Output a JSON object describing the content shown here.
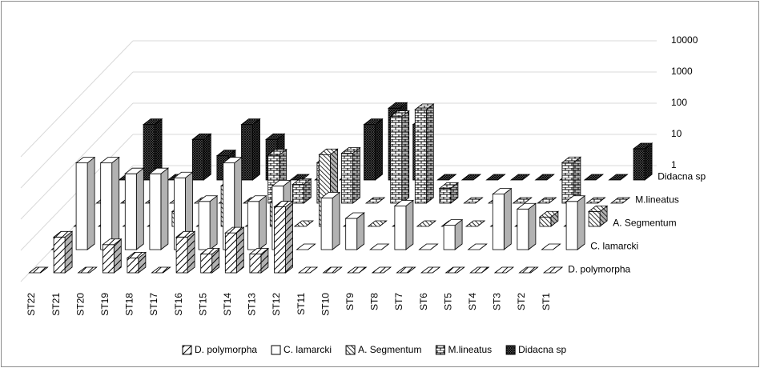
{
  "chart_data": {
    "type": "bar3d",
    "log_scale": true,
    "grid": true,
    "categories": [
      "ST22",
      "ST21",
      "ST20",
      "ST19",
      "ST18",
      "ST17",
      "ST16",
      "ST15",
      "ST14",
      "ST13",
      "ST12",
      "ST11",
      "ST10",
      "ST9",
      "ST8",
      "ST7",
      "ST6",
      "ST5",
      "ST4",
      "ST3",
      "ST2",
      "ST1"
    ],
    "series": [
      {
        "name": "D. polymorpha",
        "color": "#000000",
        "values": [
          1,
          14,
          1,
          8,
          3,
          1,
          14,
          4,
          19,
          4,
          130,
          1,
          1,
          1,
          1,
          1,
          1,
          1,
          1,
          1,
          1,
          1
        ]
      },
      {
        "name": "C. lamarcki",
        "color": "#000000",
        "values": [
          1,
          600,
          600,
          270,
          270,
          200,
          35,
          600,
          35,
          110,
          1,
          45,
          10,
          1,
          25,
          1,
          6,
          1,
          60,
          20,
          1,
          35
        ]
      },
      {
        "name": "A. Segmentum",
        "color": "#000000",
        "values": [
          1,
          1,
          1,
          1,
          3,
          1,
          20,
          1,
          6,
          1,
          200,
          1,
          1,
          1,
          1,
          1,
          1,
          1,
          1,
          2,
          1,
          3
        ]
      },
      {
        "name": "M.lineatus",
        "color": "#000000",
        "values": [
          1,
          1,
          1,
          1,
          1,
          1,
          1,
          35,
          4,
          20,
          40,
          1,
          600,
          1000,
          3,
          1,
          1,
          1,
          1,
          20,
          1,
          1
        ]
      },
      {
        "name": "Didacna sp",
        "color": "#000000",
        "values": [
          1,
          60,
          1,
          20,
          6,
          60,
          20,
          1,
          1,
          1,
          60,
          200,
          60,
          1,
          1,
          1,
          1,
          1,
          1,
          1,
          1,
          10
        ]
      }
    ],
    "ylim": [
      1,
      10000
    ],
    "yticks": [
      1,
      10,
      100,
      1000,
      10000
    ],
    "legend": "bottom"
  }
}
